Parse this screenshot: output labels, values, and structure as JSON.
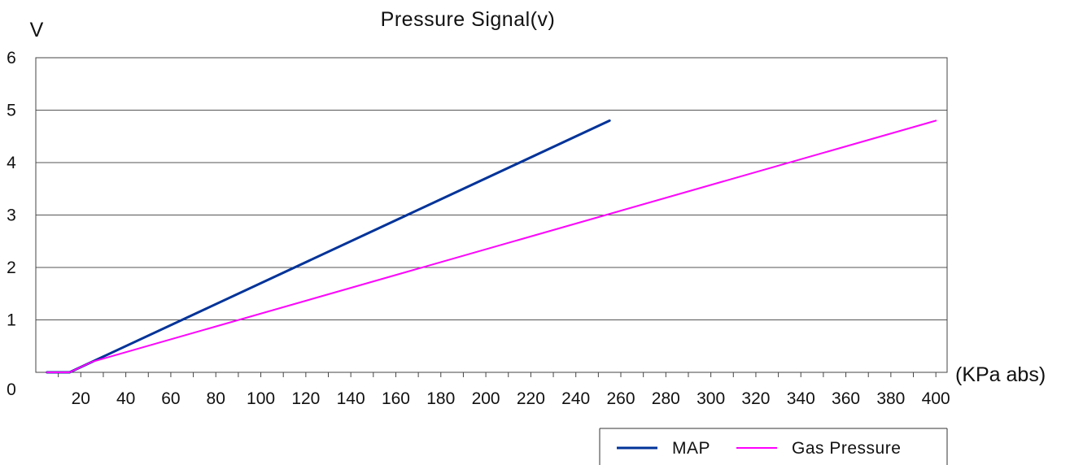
{
  "chart_data": {
    "type": "line",
    "title": "Pressure Signal(v)",
    "ylabel": "V",
    "xlabel": "(KPa abs)",
    "xlim": [
      0,
      405
    ],
    "ylim": [
      0,
      6
    ],
    "x_ticks": [
      20,
      40,
      60,
      80,
      100,
      120,
      140,
      160,
      180,
      200,
      220,
      240,
      260,
      280,
      300,
      320,
      340,
      360,
      380,
      400
    ],
    "y_ticks": [
      0,
      1,
      2,
      3,
      4,
      5,
      6
    ],
    "grid": "horizontal",
    "legend_position": "bottom-right",
    "series": [
      {
        "name": "MAP",
        "color": "#003399",
        "x": [
          5,
          15,
          25,
          255
        ],
        "y": [
          0,
          0,
          0.2,
          4.8
        ]
      },
      {
        "name": "Gas Pressure",
        "color": "#ff00ff",
        "x": [
          5,
          15,
          25,
          400
        ],
        "y": [
          0,
          0,
          0.2,
          4.8
        ]
      }
    ]
  }
}
